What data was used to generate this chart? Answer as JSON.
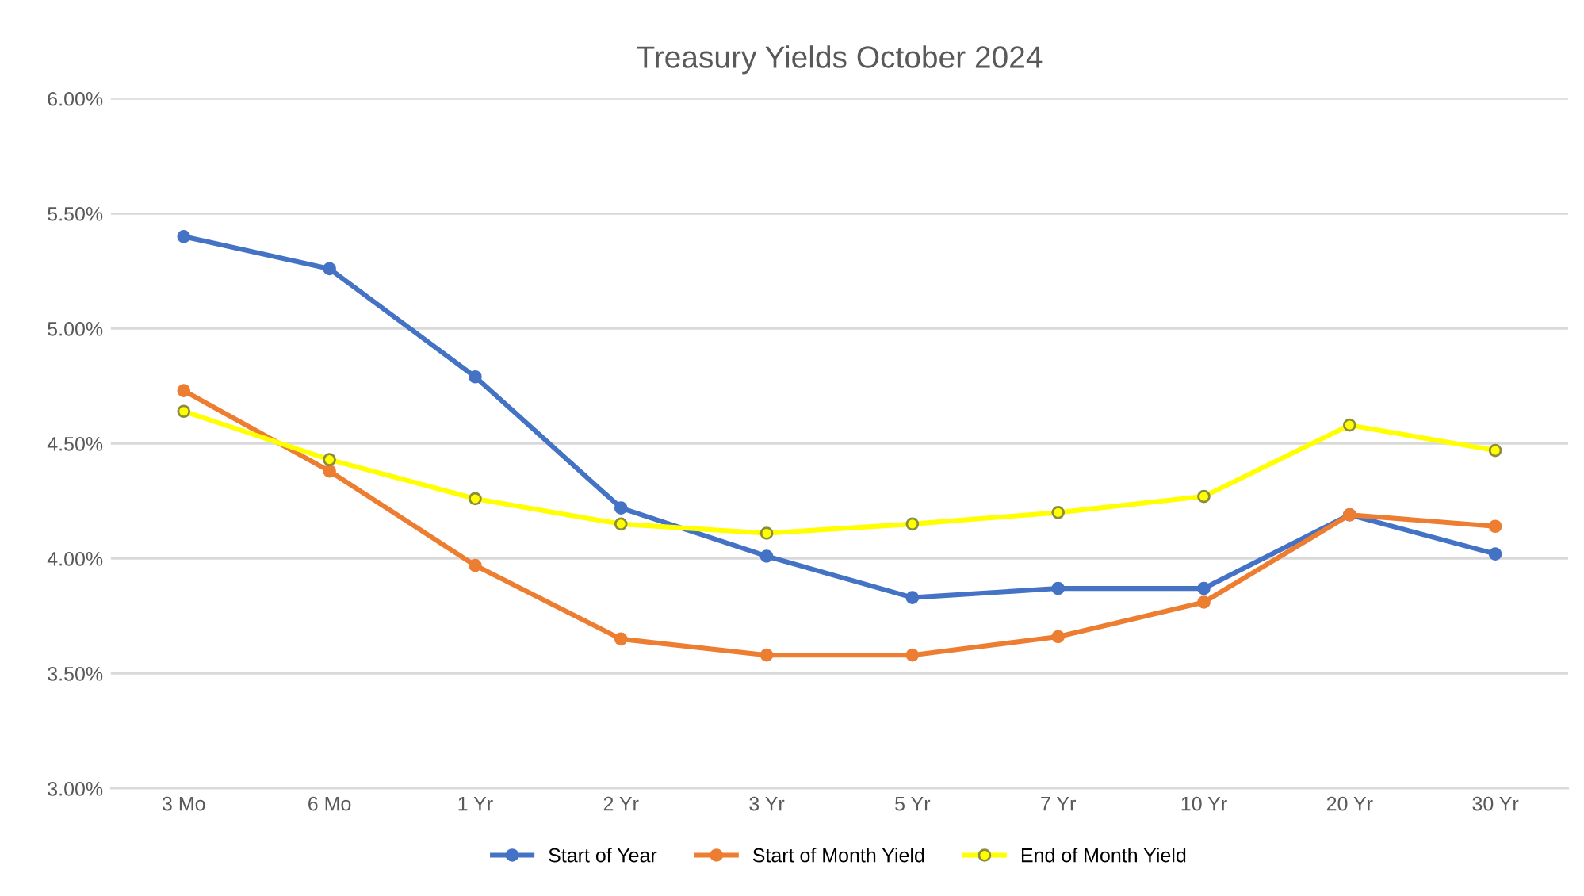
{
  "chart_data": {
    "type": "line",
    "title": "Treasury Yields October 2024",
    "categories": [
      "3 Mo",
      "6 Mo",
      "1 Yr",
      "2 Yr",
      "3 Yr",
      "5 Yr",
      "7 Yr",
      "10 Yr",
      "20 Yr",
      "30 Yr"
    ],
    "series": [
      {
        "name": "Start of Year",
        "color": "#4472c4",
        "values": [
          5.4,
          5.26,
          4.79,
          4.22,
          4.01,
          3.83,
          3.87,
          3.87,
          4.19,
          4.02
        ]
      },
      {
        "name": "Start of Month Yield",
        "color": "#ed7d31",
        "values": [
          4.73,
          4.38,
          3.97,
          3.65,
          3.58,
          3.58,
          3.66,
          3.81,
          4.19,
          4.14
        ]
      },
      {
        "name": "End of Month Yield",
        "color": "#ffff00",
        "values": [
          4.64,
          4.43,
          4.26,
          4.15,
          4.11,
          4.15,
          4.2,
          4.27,
          4.58,
          4.47
        ]
      }
    ],
    "ylim": [
      3.0,
      6.0
    ],
    "yticks": [
      {
        "value": 3.0,
        "label": "3.00%"
      },
      {
        "value": 3.5,
        "label": "3.50%"
      },
      {
        "value": 4.0,
        "label": "4.00%"
      },
      {
        "value": 4.5,
        "label": "4.50%"
      },
      {
        "value": 5.0,
        "label": "5.00%"
      },
      {
        "value": 5.5,
        "label": "5.50%"
      },
      {
        "value": 6.0,
        "label": "6.00%"
      }
    ],
    "grid": "y",
    "legend": "bottom",
    "marker": "circle",
    "line_style": "solid"
  }
}
